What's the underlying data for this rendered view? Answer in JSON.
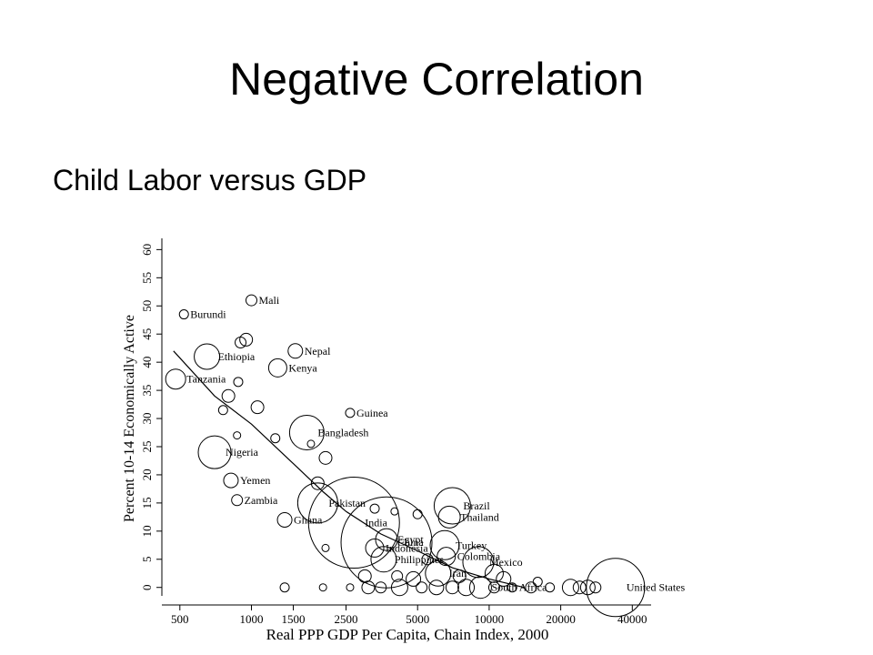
{
  "slide": {
    "title": "Negative Correlation",
    "bullet": "Child Labor versus GDP"
  },
  "chart_data": {
    "type": "scatter",
    "title": "",
    "xlabel": "Real PPP GDP Per Capita, Chain Index, 2000",
    "ylabel": "Percent 10-14 Economically Active",
    "x_scale": "log",
    "xlim": [
      420,
      48000
    ],
    "ylim": [
      -1.5,
      62
    ],
    "x_ticks": [
      500,
      1000,
      1500,
      2500,
      5000,
      10000,
      20000,
      40000
    ],
    "y_ticks": [
      0,
      5,
      10,
      15,
      20,
      25,
      30,
      35,
      40,
      45,
      50,
      55,
      60
    ],
    "marker": "hollow circle, size proportional to population",
    "points": [
      {
        "x": 520,
        "y": 48.5,
        "r": 5,
        "label": "Burundi"
      },
      {
        "x": 1000,
        "y": 51,
        "r": 6,
        "label": "Mali"
      },
      {
        "x": 1530,
        "y": 42,
        "r": 8,
        "label": "Nepal"
      },
      {
        "x": 650,
        "y": 41,
        "r": 14,
        "label": "Ethiopia"
      },
      {
        "x": 1290,
        "y": 39,
        "r": 10,
        "label": "Kenya"
      },
      {
        "x": 480,
        "y": 37,
        "r": 11,
        "label": "Tanzania"
      },
      {
        "x": 2600,
        "y": 31,
        "r": 5,
        "label": "Guinea"
      },
      {
        "x": 1710,
        "y": 27.5,
        "r": 19,
        "label": "Bangladesh"
      },
      {
        "x": 700,
        "y": 24,
        "r": 18,
        "label": "Nigeria"
      },
      {
        "x": 820,
        "y": 19,
        "r": 8,
        "label": "Yemen"
      },
      {
        "x": 870,
        "y": 15.5,
        "r": 6,
        "label": "Zambia"
      },
      {
        "x": 1900,
        "y": 15,
        "r": 22,
        "label": "Pakistan"
      },
      {
        "x": 1380,
        "y": 12,
        "r": 8,
        "label": "Ghana"
      },
      {
        "x": 2700,
        "y": 11.5,
        "r": 50,
        "label": "India"
      },
      {
        "x": 3700,
        "y": 8,
        "r": 50,
        "label": "China"
      },
      {
        "x": 3300,
        "y": 7,
        "r": 10,
        "label": "Indonesia"
      },
      {
        "x": 3700,
        "y": 8.5,
        "r": 12,
        "label": "Egypt"
      },
      {
        "x": 3600,
        "y": 5,
        "r": 14,
        "label": "Philippines"
      },
      {
        "x": 7000,
        "y": 14.5,
        "r": 20,
        "label": "Brazil"
      },
      {
        "x": 6800,
        "y": 12.5,
        "r": 12,
        "label": "Thailand"
      },
      {
        "x": 6500,
        "y": 7.5,
        "r": 16,
        "label": "Turkey"
      },
      {
        "x": 6600,
        "y": 5.5,
        "r": 10,
        "label": "Colombia"
      },
      {
        "x": 9000,
        "y": 4.5,
        "r": 17,
        "label": "Mexico"
      },
      {
        "x": 6100,
        "y": 2.5,
        "r": 14,
        "label": "Iran"
      },
      {
        "x": 9200,
        "y": 0,
        "r": 12,
        "label": "South Africa"
      },
      {
        "x": 34000,
        "y": 0,
        "r": 32,
        "label": "United States"
      },
      {
        "x": 800,
        "y": 34,
        "r": 7,
        "label": ""
      },
      {
        "x": 880,
        "y": 36.5,
        "r": 5,
        "label": ""
      },
      {
        "x": 950,
        "y": 44,
        "r": 7,
        "label": ""
      },
      {
        "x": 900,
        "y": 43.5,
        "r": 6,
        "label": ""
      },
      {
        "x": 1060,
        "y": 32,
        "r": 7,
        "label": ""
      },
      {
        "x": 760,
        "y": 31.5,
        "r": 5,
        "label": ""
      },
      {
        "x": 870,
        "y": 27,
        "r": 4,
        "label": ""
      },
      {
        "x": 1260,
        "y": 26.5,
        "r": 5,
        "label": ""
      },
      {
        "x": 1780,
        "y": 25.5,
        "r": 4,
        "label": ""
      },
      {
        "x": 2050,
        "y": 23,
        "r": 7,
        "label": ""
      },
      {
        "x": 1900,
        "y": 18.5,
        "r": 7,
        "label": ""
      },
      {
        "x": 3300,
        "y": 14,
        "r": 5,
        "label": ""
      },
      {
        "x": 4000,
        "y": 13.5,
        "r": 4,
        "label": ""
      },
      {
        "x": 5000,
        "y": 13,
        "r": 5,
        "label": ""
      },
      {
        "x": 2050,
        "y": 7,
        "r": 4,
        "label": ""
      },
      {
        "x": 5500,
        "y": 5,
        "r": 6,
        "label": ""
      },
      {
        "x": 3000,
        "y": 2,
        "r": 7,
        "label": ""
      },
      {
        "x": 4100,
        "y": 2,
        "r": 6,
        "label": ""
      },
      {
        "x": 4800,
        "y": 1.5,
        "r": 8,
        "label": ""
      },
      {
        "x": 7500,
        "y": 2,
        "r": 7,
        "label": ""
      },
      {
        "x": 10500,
        "y": 2.5,
        "r": 10,
        "label": ""
      },
      {
        "x": 11500,
        "y": 1.5,
        "r": 8,
        "label": ""
      },
      {
        "x": 16000,
        "y": 1,
        "r": 5,
        "label": ""
      },
      {
        "x": 1380,
        "y": 0,
        "r": 5,
        "label": ""
      },
      {
        "x": 2000,
        "y": 0,
        "r": 4,
        "label": ""
      },
      {
        "x": 2600,
        "y": 0,
        "r": 4,
        "label": ""
      },
      {
        "x": 3100,
        "y": 0,
        "r": 7,
        "label": ""
      },
      {
        "x": 3500,
        "y": 0,
        "r": 6,
        "label": ""
      },
      {
        "x": 4200,
        "y": 0,
        "r": 9,
        "label": ""
      },
      {
        "x": 5200,
        "y": 0,
        "r": 6,
        "label": ""
      },
      {
        "x": 6000,
        "y": 0,
        "r": 8,
        "label": ""
      },
      {
        "x": 7000,
        "y": 0,
        "r": 7,
        "label": ""
      },
      {
        "x": 8000,
        "y": 0,
        "r": 9,
        "label": ""
      },
      {
        "x": 10500,
        "y": 0,
        "r": 6,
        "label": ""
      },
      {
        "x": 12500,
        "y": 0,
        "r": 5,
        "label": ""
      },
      {
        "x": 15000,
        "y": 0,
        "r": 6,
        "label": ""
      },
      {
        "x": 18000,
        "y": 0,
        "r": 5,
        "label": ""
      },
      {
        "x": 22000,
        "y": 0,
        "r": 9,
        "label": ""
      },
      {
        "x": 24000,
        "y": 0,
        "r": 7,
        "label": ""
      },
      {
        "x": 26000,
        "y": 0,
        "r": 8,
        "label": ""
      },
      {
        "x": 28000,
        "y": 0,
        "r": 6,
        "label": ""
      }
    ],
    "fit_line": {
      "x": [
        470,
        700,
        1000,
        1500,
        2000,
        2500,
        3500,
        5000,
        7000,
        10000,
        14000
      ],
      "y": [
        42,
        34,
        29,
        22,
        17,
        13.5,
        9.5,
        6.5,
        3.5,
        1.5,
        0
      ]
    }
  }
}
